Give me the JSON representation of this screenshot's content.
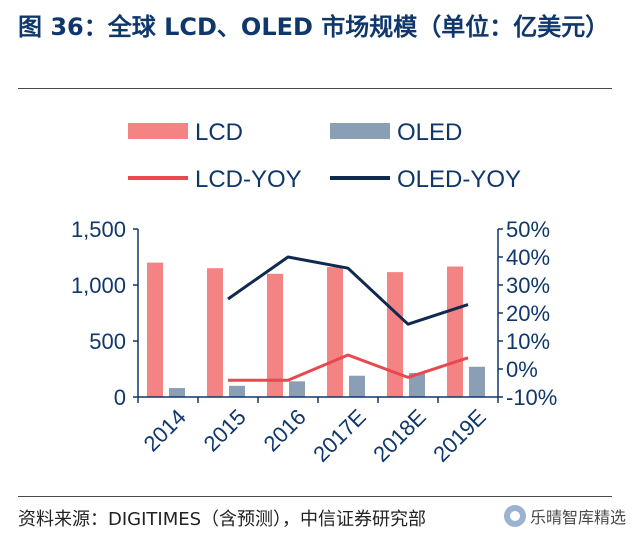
{
  "header": {
    "title": "图 36：全球 LCD、OLED 市场规模（单位：亿美元）"
  },
  "footer": {
    "source": "资料来源：DIGITIMES（含预测），中信证券研究部",
    "watermark": "乐晴智库精选"
  },
  "chart_data": {
    "type": "bar",
    "categories": [
      "2014",
      "2015",
      "2016",
      "2017E",
      "2018E",
      "2019E"
    ],
    "series": [
      {
        "name": "LCD",
        "type": "bar",
        "axis": "left",
        "color": "#f48383",
        "values": [
          1200,
          1150,
          1100,
          1160,
          1115,
          1165
        ]
      },
      {
        "name": "OLED",
        "type": "bar",
        "axis": "left",
        "color": "#8a9fb5",
        "values": [
          80,
          100,
          140,
          190,
          215,
          270
        ]
      },
      {
        "name": "LCD-YOY",
        "type": "line",
        "axis": "right",
        "color": "#e8484e",
        "values": [
          null,
          -4,
          -4,
          5,
          -3,
          4
        ]
      },
      {
        "name": "OLED-YOY",
        "type": "line",
        "axis": "right",
        "color": "#10294e",
        "values": [
          null,
          25,
          40,
          36,
          16,
          23
        ]
      }
    ],
    "y_left": {
      "min": 0,
      "max": 1500,
      "ticks": [
        "0",
        "500",
        "1,000",
        "1,500"
      ],
      "tick_values": [
        0,
        500,
        1000,
        1500
      ]
    },
    "y_right": {
      "min": -10,
      "max": 50,
      "ticks": [
        "-10%",
        "0%",
        "10%",
        "20%",
        "30%",
        "40%",
        "50%"
      ],
      "tick_values": [
        -10,
        0,
        10,
        20,
        30,
        40,
        50
      ]
    },
    "legend": {
      "placement": "top",
      "entries": [
        "LCD",
        "OLED",
        "LCD-YOY",
        "OLED-YOY"
      ]
    },
    "grid": false
  }
}
